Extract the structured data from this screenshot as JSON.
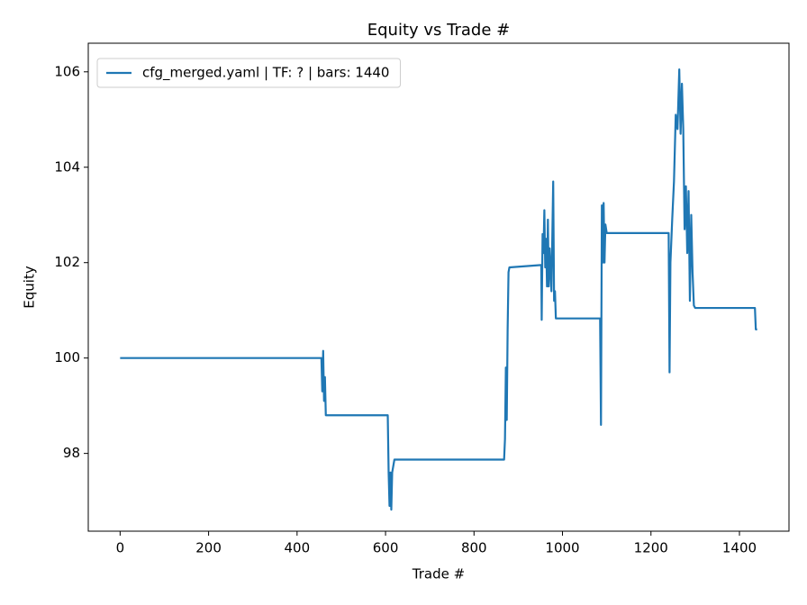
{
  "chart_data": {
    "type": "line",
    "title": "Equity vs Trade #",
    "x_label": "Trade #",
    "y_label": "Equity",
    "x": [
      0,
      455,
      457,
      459,
      461,
      463,
      465,
      605,
      607,
      609,
      611,
      613,
      615,
      620,
      868,
      870,
      872,
      874,
      876,
      878,
      880,
      952,
      953,
      955,
      957,
      959,
      961,
      963,
      965,
      967,
      969,
      971,
      975,
      979,
      981,
      983,
      985,
      1085,
      1087,
      1089,
      1091,
      1093,
      1095,
      1097,
      1100,
      1240,
      1242,
      1244,
      1248,
      1252,
      1256,
      1260,
      1264,
      1267,
      1270,
      1273,
      1276,
      1279,
      1282,
      1285,
      1288,
      1291,
      1294,
      1297,
      1300,
      1435,
      1437,
      1440
    ],
    "series": [
      {
        "name": "cfg_merged.yaml | TF: ? | bars: 1440",
        "color": "#1f77b4",
        "values": [
          100,
          100,
          99.3,
          100.15,
          99.1,
          99.6,
          98.8,
          98.8,
          97.6,
          96.9,
          97.6,
          96.82,
          97.6,
          97.87,
          97.87,
          98.3,
          99.8,
          98.7,
          100.6,
          101.8,
          101.9,
          101.95,
          100.8,
          102.6,
          102.2,
          103.1,
          101.9,
          102.5,
          101.5,
          102.9,
          101.5,
          102.3,
          101.4,
          103.7,
          101.2,
          101.4,
          100.83,
          100.83,
          98.6,
          103.2,
          102.0,
          103.25,
          102.0,
          102.8,
          102.62,
          102.62,
          99.7,
          102.0,
          102.9,
          103.7,
          105.1,
          104.8,
          106.05,
          104.7,
          105.75,
          104.8,
          102.7,
          103.6,
          102.2,
          103.5,
          101.2,
          103.0,
          101.8,
          101.1,
          101.05,
          101.05,
          100.6,
          100.6
        ]
      }
    ],
    "xlim": [
      -72,
      1512
    ],
    "ylim": [
      96.37,
      106.6
    ],
    "xticks": [
      0,
      200,
      400,
      600,
      800,
      1000,
      1200,
      1400
    ],
    "yticks": [
      98,
      100,
      102,
      104,
      106
    ],
    "grid": false,
    "legend": "upper left"
  }
}
